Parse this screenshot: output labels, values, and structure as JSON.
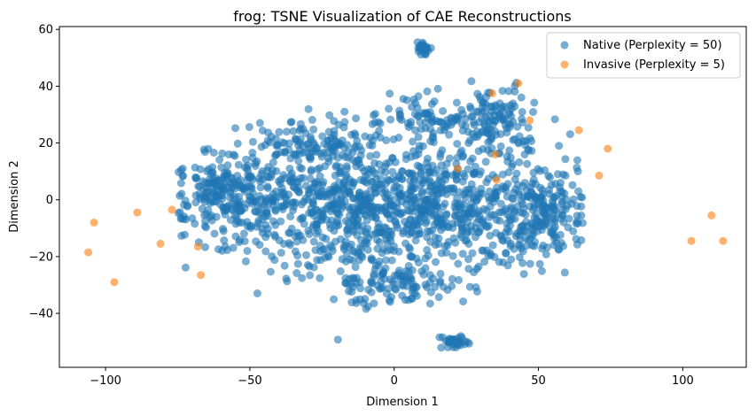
{
  "chart_data": {
    "type": "scatter",
    "title": "frog: TSNE Visualization of CAE Reconstructions",
    "xlabel": "Dimension 1",
    "ylabel": "Dimension 2",
    "xlim": [
      -116,
      122
    ],
    "ylim": [
      -59,
      61
    ],
    "xticks": [
      -100,
      -50,
      0,
      50,
      100
    ],
    "yticks": [
      -40,
      -20,
      0,
      20,
      40,
      60
    ],
    "xtick_labels": [
      "−100",
      "−50",
      "0",
      "50",
      "100"
    ],
    "ytick_labels": [
      "−40",
      "−20",
      "0",
      "20",
      "40",
      "60"
    ],
    "grid": false,
    "legend_position": "top-right",
    "series": [
      {
        "name": "Native (Perplexity = 50)",
        "color": "#1f77b4",
        "alpha": 0.6,
        "description_clusters": [
          {
            "cx": -45,
            "cy": 0,
            "rx": 30,
            "ry": 15,
            "n": 320
          },
          {
            "cx": -10,
            "cy": -5,
            "rx": 30,
            "ry": 20,
            "n": 420
          },
          {
            "cx": 20,
            "cy": -2,
            "rx": 30,
            "ry": 20,
            "n": 420
          },
          {
            "cx": 50,
            "cy": -5,
            "rx": 15,
            "ry": 15,
            "n": 200
          },
          {
            "cx": -30,
            "cy": 20,
            "rx": 20,
            "ry": 8,
            "n": 120
          },
          {
            "cx": 10,
            "cy": 28,
            "rx": 15,
            "ry": 8,
            "n": 80
          },
          {
            "cx": 35,
            "cy": 28,
            "rx": 12,
            "ry": 10,
            "n": 120
          },
          {
            "cx": 0,
            "cy": -30,
            "rx": 20,
            "ry": 6,
            "n": 100
          },
          {
            "cx": -60,
            "cy": 5,
            "rx": 10,
            "ry": 8,
            "n": 80
          },
          {
            "cx": 10,
            "cy": 53,
            "rx": 2,
            "ry": 3,
            "n": 25
          },
          {
            "cx": 21,
            "cy": -50,
            "rx": 5,
            "ry": 2.5,
            "n": 40
          }
        ]
      },
      {
        "name": "Invasive (Perplexity = 5)",
        "color": "#ff7f0e",
        "alpha": 0.6,
        "points": [
          [
            -106,
            -18.5
          ],
          [
            -104,
            -8
          ],
          [
            -97,
            -29
          ],
          [
            -89,
            -4.5
          ],
          [
            -81,
            -15.5
          ],
          [
            -77,
            -3.5
          ],
          [
            -68,
            -16.5
          ],
          [
            -67,
            -26.5
          ],
          [
            22,
            11
          ],
          [
            34,
            37.5
          ],
          [
            35,
            16
          ],
          [
            35.5,
            7
          ],
          [
            43,
            41
          ],
          [
            47,
            28
          ],
          [
            64,
            24.5
          ],
          [
            71,
            8.5
          ],
          [
            74,
            18
          ],
          [
            103,
            -14.5
          ],
          [
            110,
            -5.5
          ],
          [
            114,
            -14.5
          ]
        ]
      }
    ]
  }
}
